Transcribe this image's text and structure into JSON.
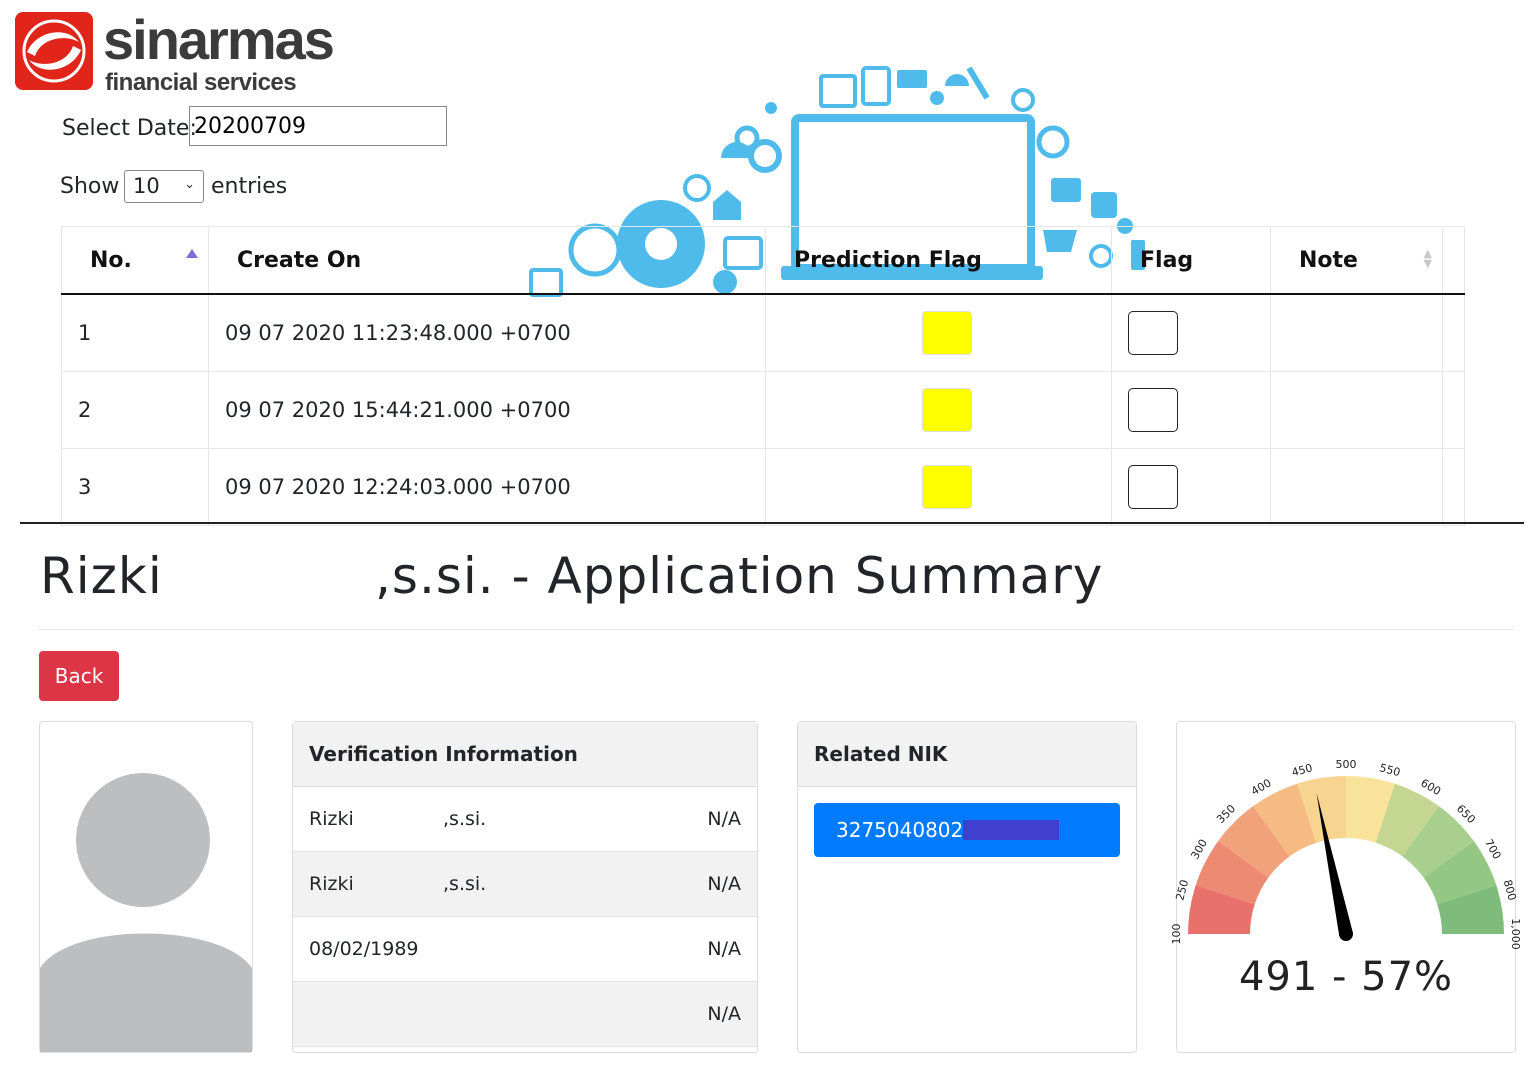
{
  "brand": {
    "name": "sinarmas",
    "subtitle": "financial services",
    "logo_icon": "sinarmas-swirl-icon",
    "accent": "#e1251b"
  },
  "filter": {
    "date_label": "Select Date:",
    "date_value": "20200709"
  },
  "length": {
    "show_label": "Show",
    "value": "10",
    "entries_label": "entries"
  },
  "table": {
    "columns": [
      "No.",
      "Create On",
      "Prediction Flag",
      "Flag",
      "Note"
    ],
    "rows": [
      {
        "no": "1",
        "create_on": "09 07 2020 11:23:48.000 +0700",
        "prediction": "#ffff00"
      },
      {
        "no": "2",
        "create_on": "09 07 2020 15:44:21.000 +0700",
        "prediction": "#ffff00"
      },
      {
        "no": "3",
        "create_on": "09 07 2020 12:24:03.000 +0700",
        "prediction": "#ffff00"
      }
    ]
  },
  "summary": {
    "title_part1": "Rizki",
    "title_part2": ",s.si. - Application Summary",
    "back_label": "Back",
    "avatar_icon": "user-avatar-icon"
  },
  "verification": {
    "header": "Verification Information",
    "rows": [
      {
        "a": "Rizki",
        "b": ",s.si.",
        "status": "N/A"
      },
      {
        "a": "Rizki",
        "b": ",s.si.",
        "status": "N/A"
      },
      {
        "a": "08/02/1989",
        "b": "",
        "status": "N/A"
      },
      {
        "a": "",
        "b": "",
        "status": "N/A"
      }
    ]
  },
  "related_nik": {
    "header": "Related NIK",
    "value": "3275040802"
  },
  "gauge": {
    "score": 491,
    "percent": "57%",
    "display": "491 - 57%",
    "min": 100,
    "max": 1000,
    "tick_labels": [
      "100",
      "250",
      "300",
      "350",
      "400",
      "450",
      "500",
      "550",
      "600",
      "650",
      "700",
      "800",
      "1,000"
    ],
    "band_colors": [
      "#e8716c",
      "#ed8a72",
      "#f2a27a",
      "#f5bb83",
      "#f7d48f",
      "#f9e39a",
      "#c4d692",
      "#a8cf8d",
      "#93c783",
      "#7fbc7c"
    ]
  }
}
